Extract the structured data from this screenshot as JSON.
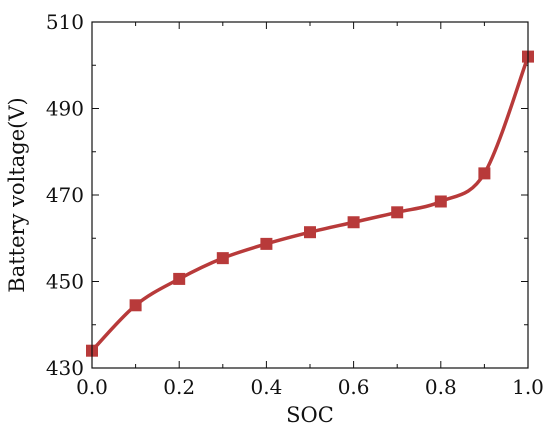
{
  "chart_data": {
    "type": "line",
    "xlabel": "SOC",
    "ylabel": "Battery voltage(V)",
    "xlim": [
      0.0,
      1.0
    ],
    "ylim": [
      430,
      510
    ],
    "x_ticks": [
      "0.0",
      "0.2",
      "0.4",
      "0.6",
      "0.8",
      "1.0"
    ],
    "y_ticks": [
      "430",
      "450",
      "470",
      "490",
      "510"
    ],
    "grid": false,
    "series": [
      {
        "marker": "square",
        "color": "#b83a3a",
        "x": [
          0.0,
          0.1,
          0.2,
          0.3,
          0.4,
          0.5,
          0.6,
          0.7,
          0.8,
          0.9,
          1.0
        ],
        "y": [
          434,
          444.5,
          450.6,
          455.4,
          458.7,
          461.4,
          463.7,
          466,
          468.5,
          475,
          502
        ]
      }
    ]
  }
}
